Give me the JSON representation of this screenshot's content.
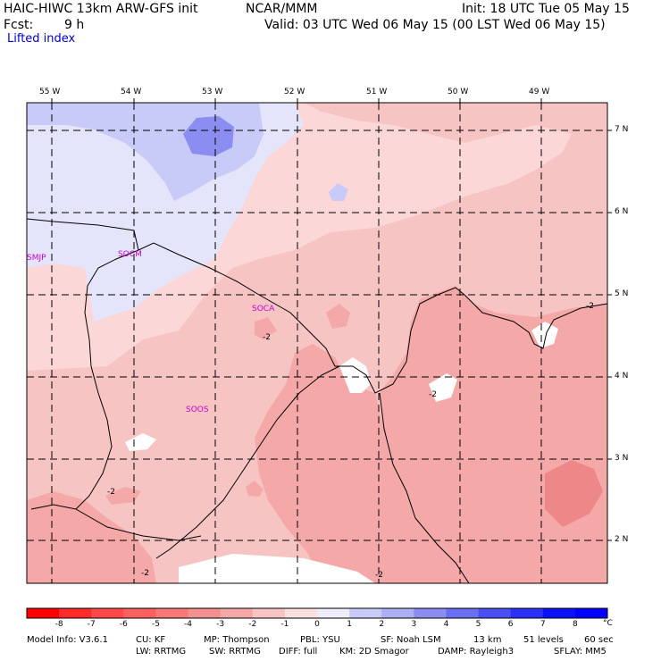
{
  "header": {
    "model": "HAIC-HIWC 13km ARW-GFS init",
    "org": "NCAR/MMM",
    "init": "Init: 18 UTC Tue 05 May 15",
    "fcst_label": "Fcst:",
    "fcst_value": "9 h",
    "valid": "Valid: 03 UTC Wed 06 May 15 (00 LST Wed 06 May 15)",
    "field": "Lifted index"
  },
  "map": {
    "lon_labels": [
      "55 W",
      "54 W",
      "53 W",
      "52 W",
      "51 W",
      "50 W",
      "49 W"
    ],
    "lat_labels": [
      "7 N",
      "6 N",
      "5 N",
      "4 N",
      "3 N",
      "2 N"
    ],
    "stations": [
      "SMJP",
      "SOCM",
      "SOCA",
      "SOOS"
    ],
    "contour_labels": [
      "-2",
      "-2",
      "-2",
      "-2",
      "-2",
      "-2"
    ],
    "colors": {
      "frame": "#000000",
      "grid": "#000000",
      "station": "#cc00cc",
      "fill_blue_dark": "#8b8ef0",
      "fill_blue_mid": "#c8caf7",
      "fill_blue_light": "#e4e5fb",
      "fill_pink_light": "#fbd7d7",
      "fill_pink": "#f7c4c4",
      "fill_pink_mid": "#f4a8a8",
      "fill_pink_dark": "#ee8888"
    }
  },
  "colorbar": {
    "labels": [
      "-8",
      "-7",
      "-6",
      "-5",
      "-4",
      "-3",
      "-2",
      "-1",
      "0",
      "1",
      "2",
      "3",
      "4",
      "5",
      "6",
      "7",
      "8"
    ],
    "unit": "°C",
    "colors": [
      "#ff0000",
      "#ff2a2a",
      "#ff4848",
      "#fb6060",
      "#f87878",
      "#f59090",
      "#f4a8a8",
      "#f7c4c4",
      "#fbe0e0",
      "#ececfa",
      "#c8caf7",
      "#adaff4",
      "#8b8ef0",
      "#6a6ef0",
      "#4a4ff2",
      "#2a30f5",
      "#0c12f8",
      "#0000ff"
    ]
  },
  "footer": {
    "line1": [
      "Model Info: V3.6.1",
      "CU: KF",
      "MP: Thompson",
      "PBL: YSU",
      "SF: Noah LSM",
      "13 km",
      "51 levels",
      "60 sec"
    ],
    "line2": [
      "LW: RRTMG",
      "SW: RRTMG",
      "DIFF: full",
      "KM: 2D Smagor",
      "DAMP: Rayleigh3",
      "SFLAY: MM5"
    ]
  }
}
